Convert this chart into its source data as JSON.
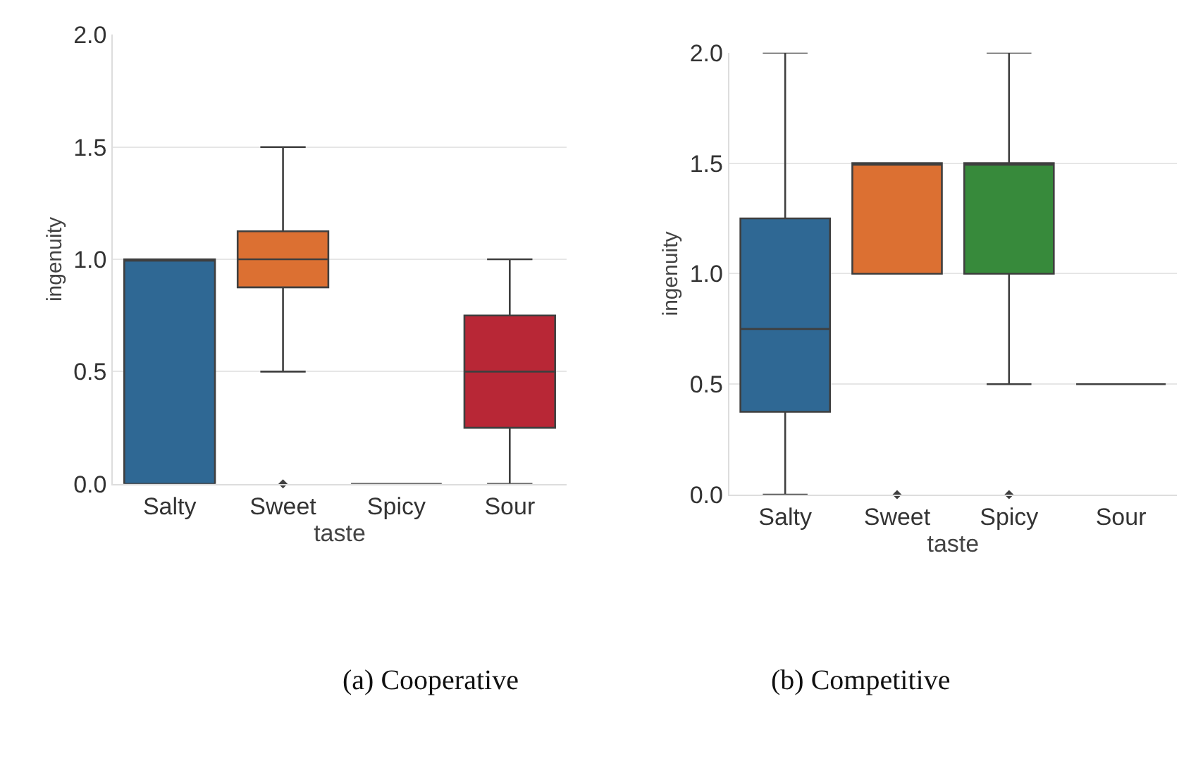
{
  "chart_data": [
    {
      "type": "box",
      "categories": [
        "Salty",
        "Sweet",
        "Spicy",
        "Sour"
      ],
      "xlabel": "taste",
      "ylabel": "ingenuity",
      "ylim": [
        0,
        2
      ],
      "yticks": [
        {
          "value": 0,
          "label": "0.0"
        },
        {
          "value": 0.5,
          "label": "0.5"
        },
        {
          "value": 1,
          "label": "1.0"
        },
        {
          "value": 1.5,
          "label": "1.5"
        },
        {
          "value": 2,
          "label": "2.0"
        }
      ],
      "grid": "y",
      "colors": [
        "#2f6894",
        "#dc7032",
        null,
        "#b82736"
      ],
      "boxes": [
        {
          "low": 0,
          "q1": 0,
          "median": 1,
          "q3": 1,
          "high": 1
        },
        {
          "low": 0.5,
          "q1": 0.875,
          "median": 1,
          "q3": 1.125,
          "high": 1.5,
          "outliers": [
            0
          ]
        },
        {
          "low": 0,
          "q1": 0,
          "median": 0,
          "q3": 0,
          "high": 0
        },
        {
          "low": 0,
          "q1": 0.25,
          "median": 0.5,
          "q3": 0.75,
          "high": 1
        }
      ],
      "annotations": [
        "(a) Cooperative"
      ]
    },
    {
      "type": "box",
      "categories": [
        "Salty",
        "Sweet",
        "Spicy",
        "Sour"
      ],
      "xlabel": "taste",
      "ylabel": "ingenuity",
      "ylim": [
        0,
        2
      ],
      "yticks": [
        {
          "value": 0,
          "label": "0.0"
        },
        {
          "value": 0.5,
          "label": "0.5"
        },
        {
          "value": 1,
          "label": "1.0"
        },
        {
          "value": 1.5,
          "label": "1.5"
        },
        {
          "value": 2,
          "label": "2.0"
        }
      ],
      "grid": "y",
      "colors": [
        "#2f6894",
        "#dc7032",
        "#378a3b",
        null
      ],
      "boxes": [
        {
          "low": 0,
          "q1": 0.375,
          "median": 0.75,
          "q3": 1.25,
          "high": 2
        },
        {
          "low": 1,
          "q1": 1,
          "median": 1.5,
          "q3": 1.5,
          "high": 1.5,
          "outliers": [
            0
          ]
        },
        {
          "low": 0.5,
          "q1": 1,
          "median": 1.5,
          "q3": 1.5,
          "high": 2,
          "outliers": [
            0
          ]
        },
        {
          "low": 0.5,
          "q1": 0.5,
          "median": 0.5,
          "q3": 0.5,
          "high": 0.5
        }
      ],
      "annotations": [
        "(b) Competitive"
      ]
    }
  ]
}
